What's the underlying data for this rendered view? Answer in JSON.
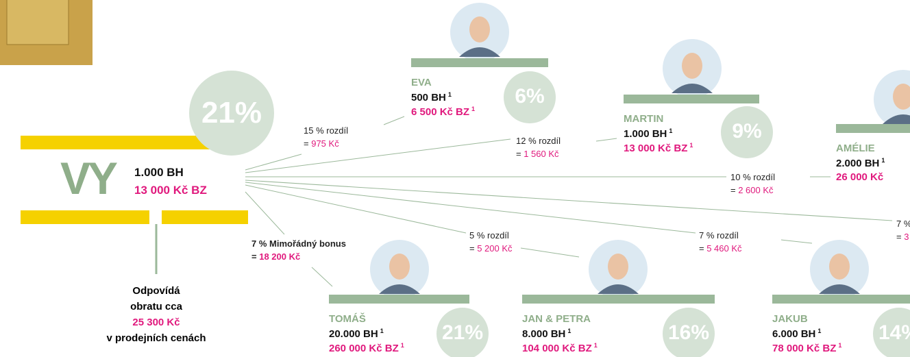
{
  "you": {
    "label": "VY",
    "bh": "1.000 BH",
    "bz": "13 000 Kč BZ",
    "percent": "21%",
    "note": [
      "Odpovídá",
      "obratu cca",
      "25 300 Kč",
      "v prodejních cenách"
    ]
  },
  "footnote_mark": "1",
  "people": [
    {
      "name": "EVA",
      "bh": "500 BH",
      "bz": "6 500 Kč BZ",
      "percent": "6%"
    },
    {
      "name": "MARTIN",
      "bh": "1.000 BH",
      "bz": "13 000 Kč BZ",
      "percent": "9%"
    },
    {
      "name": "AMÉLIE",
      "bh": "2.000 BH",
      "bz": "26 000 Kč"
    },
    {
      "name": "TOMÁŠ",
      "bh": "20.000 BH",
      "bz": "260 000 Kč BZ",
      "percent": "21%"
    },
    {
      "name": "JAN & PETRA",
      "bh": "8.000 BH",
      "bz": "104 000 Kč BZ",
      "percent": "16%"
    },
    {
      "name": "JAKUB",
      "bh": "6.000 BH",
      "bz": "78 000 Kč BZ",
      "percent": "14%"
    }
  ],
  "links": [
    {
      "label": "15 % rozdíl",
      "eq": "=",
      "amount": "975 Kč"
    },
    {
      "label": "12 % rozdíl",
      "eq": "=",
      "amount": "1 560 Kč"
    },
    {
      "label": "10 % rozdíl",
      "eq": "=",
      "amount": "2 600 Kč"
    },
    {
      "label": "7 %",
      "eq": "=",
      "amount": "3"
    },
    {
      "label": "5 % rozdíl",
      "eq": "=",
      "amount": "5 200 Kč"
    },
    {
      "label": "7 % rozdíl",
      "eq": "=",
      "amount": "5 460 Kč"
    },
    {
      "label": "7 % Mimořádný bonus",
      "eq": "=",
      "amount": "18 200 Kč"
    }
  ]
}
